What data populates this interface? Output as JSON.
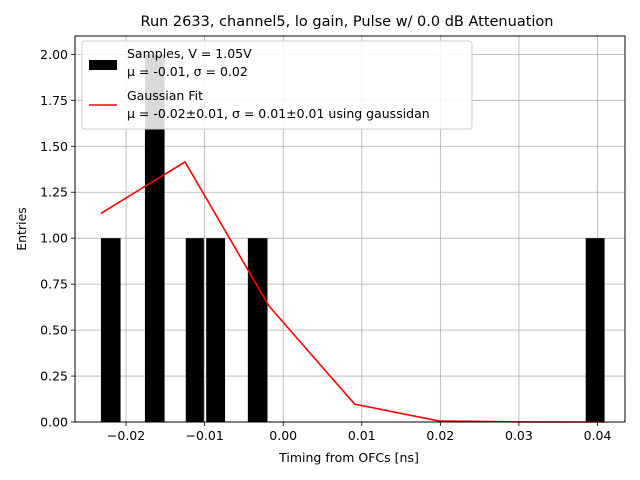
{
  "chart_data": {
    "type": "bar",
    "title": "Run 2633, channel5, lo gain, Pulse w/ 0.0 dB Attenuation",
    "xlabel": "Timing from OFCs [ns]",
    "ylabel": "Entries",
    "xlim": [
      -0.0265,
      0.0435
    ],
    "ylim": [
      0.0,
      2.1
    ],
    "grid": true,
    "xticks": [
      -0.02,
      -0.01,
      0.0,
      0.01,
      0.02,
      0.03,
      0.04
    ],
    "xtick_labels": [
      "−0.02",
      "−0.01",
      "0.00",
      "0.01",
      "0.02",
      "0.03",
      "0.04"
    ],
    "yticks": [
      0.0,
      0.25,
      0.5,
      0.75,
      1.0,
      1.25,
      1.5,
      1.75,
      2.0
    ],
    "ytick_labels": [
      "0.00",
      "0.25",
      "0.50",
      "0.75",
      "1.00",
      "1.25",
      "1.50",
      "1.75",
      "2.00"
    ],
    "histogram": {
      "name": "Samples, V = 1.05V",
      "stats": "μ = -0.01, σ = 0.02",
      "color": "#000000",
      "bins": [
        {
          "x0": -0.0232,
          "x1": -0.0207,
          "count": 1
        },
        {
          "x0": -0.0176,
          "x1": -0.0151,
          "count": 2
        },
        {
          "x0": -0.0124,
          "x1": -0.0101,
          "count": 1
        },
        {
          "x0": -0.0098,
          "x1": -0.0074,
          "count": 1
        },
        {
          "x0": -0.0045,
          "x1": -0.002,
          "count": 1
        },
        {
          "x0": 0.0385,
          "x1": 0.0409,
          "count": 1
        }
      ]
    },
    "fit": {
      "name": "Gaussian Fit",
      "stats": "μ = -0.02±0.01, σ = 0.01±0.01 using gaussidan",
      "color": "#ff0000",
      "x": [
        -0.0232,
        -0.0125,
        -0.0018,
        0.0091,
        0.0198,
        0.0302,
        0.0409
      ],
      "y": [
        1.135,
        1.415,
        0.63,
        0.097,
        0.006,
        0.0005,
        0.0
      ]
    },
    "legend_position": "top-left"
  }
}
